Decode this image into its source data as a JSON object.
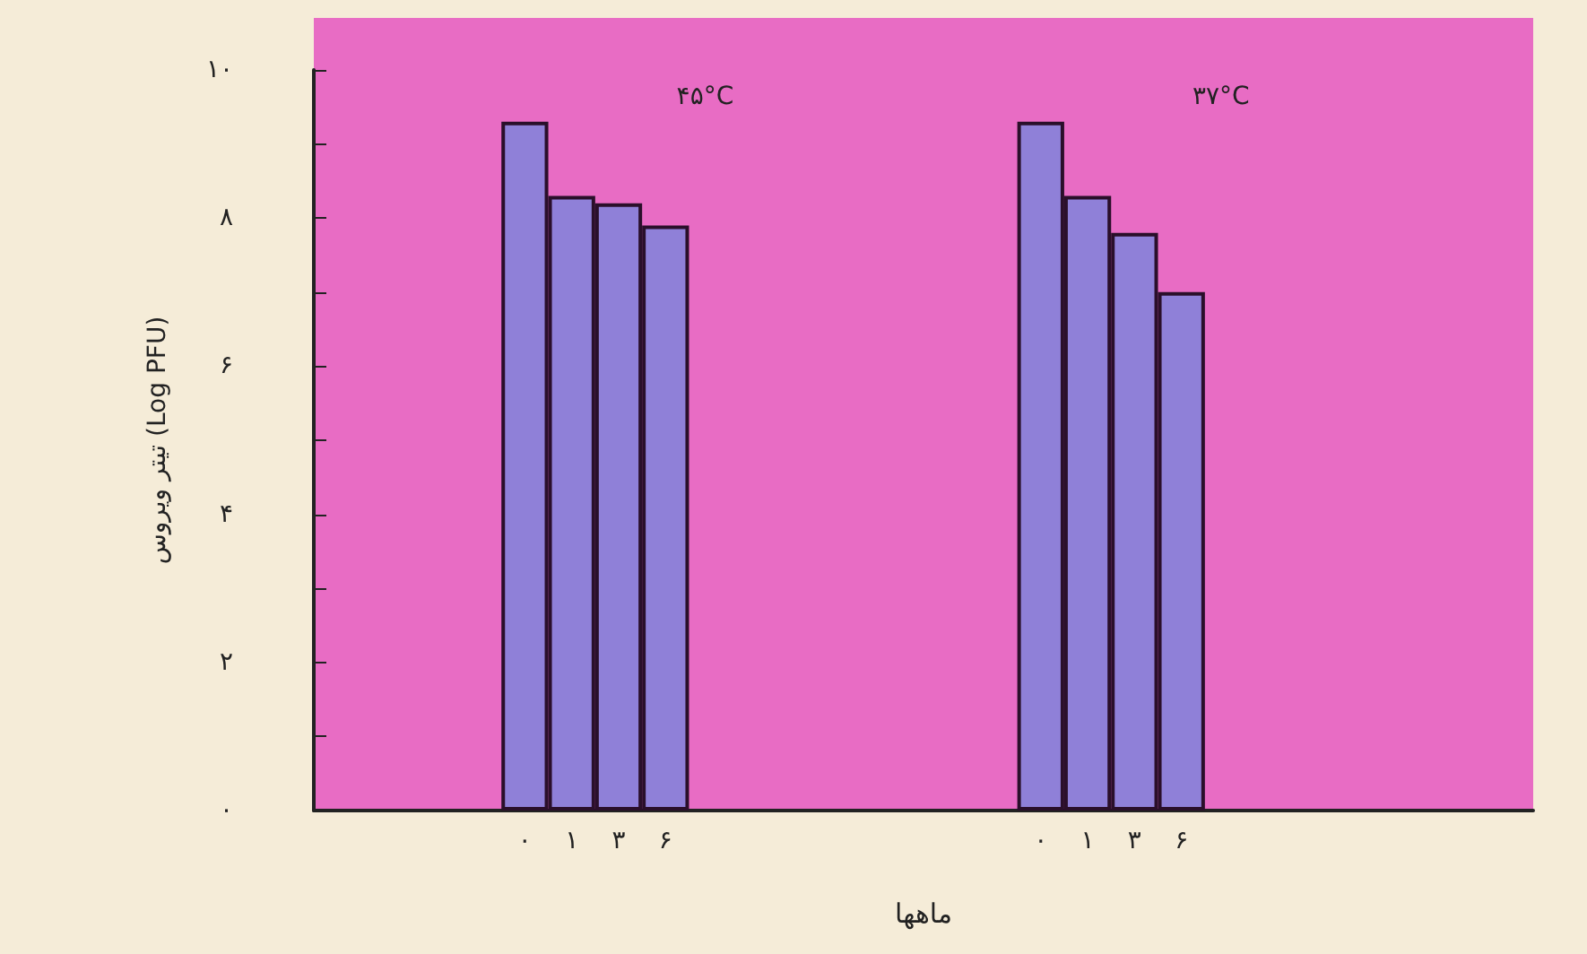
{
  "chart_data": {
    "type": "bar",
    "xlabel": "ماهها",
    "ylabel": "تیتر ویروس (Log PFU)",
    "categories": [
      null,
      null,
      null,
      null,
      "۰",
      "۱",
      "۳",
      "۶",
      null,
      null,
      null,
      null,
      null,
      null,
      null,
      "۰",
      "۱",
      "۳",
      "۶",
      null,
      null,
      null,
      null,
      null,
      null,
      null
    ],
    "series": [
      {
        "color": "#8f80d8",
        "values": [
          null,
          null,
          null,
          null,
          9.3,
          8.3,
          8.2,
          7.9,
          null,
          null,
          null,
          null,
          null,
          null,
          null,
          9.3,
          8.3,
          7.8,
          7.0,
          null,
          null,
          null,
          null,
          null,
          null,
          null
        ]
      }
    ],
    "ylim": [
      0,
      10
    ],
    "yticks": [
      {
        "value": 0,
        "label": "۰"
      },
      {
        "value": 1,
        "label": null
      },
      {
        "value": 2,
        "label": "۲"
      },
      {
        "value": 3,
        "label": null
      },
      {
        "value": 4,
        "label": "۴"
      },
      {
        "value": 5,
        "label": null
      },
      {
        "value": 6,
        "label": "۶"
      },
      {
        "value": 7,
        "label": null
      },
      {
        "value": 8,
        "label": "۸"
      },
      {
        "value": 9,
        "label": null
      },
      {
        "value": 10,
        "label": "۱۰"
      }
    ],
    "annotations": [
      "۴۵°C",
      "۳۷°C"
    ],
    "grid": false
  }
}
